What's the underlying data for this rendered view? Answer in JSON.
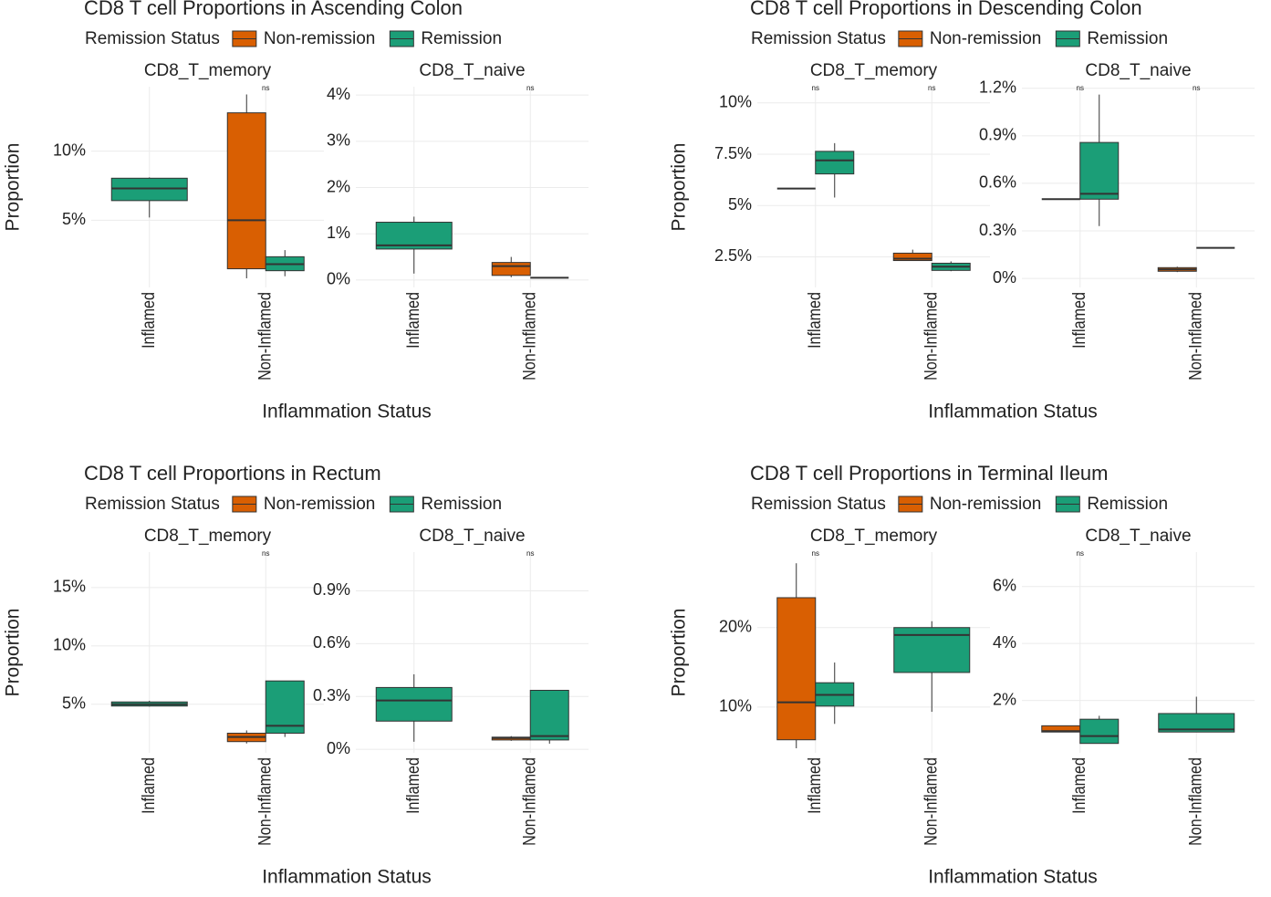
{
  "chart_data": [
    {
      "type": "box",
      "title": "CD8 T cell Proportions in Ascending Colon",
      "legend_title": "Remission Status",
      "series": [
        {
          "name": "Non-remission",
          "color": "#d95f02"
        },
        {
          "name": "Remission",
          "color": "#1b9e77"
        }
      ],
      "x_label": "Inflammation Status",
      "y_label": "Proportion",
      "grid": true,
      "facets": [
        {
          "title": "CD8_T_memory",
          "categories": [
            "Inflamed",
            "Non-Inflamed"
          ],
          "annotations": [
            null,
            "ns"
          ],
          "ylim": [
            0.14,
            14.66
          ],
          "yticks": [
            {
              "value": 5,
              "label": "5%"
            },
            {
              "value": 10,
              "label": "10%"
            }
          ],
          "boxes": [
            [
              null,
              {
                "min": 0.8,
                "q1": 1.49,
                "median": 5.0,
                "q3": 12.77,
                "max": 14.1
              }
            ],
            [
              {
                "min": 5.2,
                "q1": 6.42,
                "median": 7.3,
                "q3": 8.04,
                "max": 8.1
              },
              {
                "min": 0.95,
                "q1": 1.35,
                "median": 1.82,
                "q3": 2.36,
                "max": 2.84
              }
            ]
          ]
        },
        {
          "title": "CD8_T_naive",
          "categories": [
            "Inflamed",
            "Non-Inflamed"
          ],
          "annotations": [
            null,
            "ns"
          ],
          "ylim": [
            -0.16,
            4.18
          ],
          "yticks": [
            {
              "value": 0,
              "label": "0%"
            },
            {
              "value": 1,
              "label": "1%"
            },
            {
              "value": 2,
              "label": "2%"
            },
            {
              "value": 3,
              "label": "3%"
            },
            {
              "value": 4,
              "label": "4%"
            }
          ],
          "boxes": [
            [
              null,
              {
                "min": 0.06,
                "q1": 0.1,
                "median": 0.3,
                "q3": 0.38,
                "max": 0.5
              }
            ],
            [
              {
                "min": 0.14,
                "q1": 0.67,
                "median": 0.75,
                "q3": 1.25,
                "max": 1.37
              },
              {
                "min": 0.05,
                "q1": 0.05,
                "median": 0.05,
                "q3": 0.05,
                "max": 0.05
              }
            ]
          ]
        }
      ]
    },
    {
      "type": "box",
      "title": "CD8 T cell Proportions in Descending Colon",
      "legend_title": "Remission Status",
      "series": [
        {
          "name": "Non-remission",
          "color": "#d95f02"
        },
        {
          "name": "Remission",
          "color": "#1b9e77"
        }
      ],
      "x_label": "Inflammation Status",
      "y_label": "Proportion",
      "grid": true,
      "facets": [
        {
          "title": "CD8_T_memory",
          "categories": [
            "Inflamed",
            "Non-Inflamed"
          ],
          "annotations": [
            "ns",
            "ns"
          ],
          "ylim": [
            1.01,
            10.79
          ],
          "yticks": [
            {
              "value": 2.5,
              "label": "2.5%"
            },
            {
              "value": 5,
              "label": "5%"
            },
            {
              "value": 7.5,
              "label": "7.5%"
            },
            {
              "value": 10,
              "label": "10%"
            }
          ],
          "boxes": [
            [
              {
                "min": 5.83,
                "q1": 5.83,
                "median": 5.83,
                "q3": 5.83,
                "max": 5.83
              },
              {
                "min": 2.32,
                "q1": 2.32,
                "median": 2.41,
                "q3": 2.68,
                "max": 2.85
              }
            ],
            [
              {
                "min": 5.39,
                "q1": 6.54,
                "median": 7.2,
                "q3": 7.64,
                "max": 8.04
              },
              {
                "min": 1.8,
                "q1": 1.84,
                "median": 2.02,
                "q3": 2.19,
                "max": 2.28
              }
            ]
          ]
        },
        {
          "title": "CD8_T_naive",
          "categories": [
            "Inflamed",
            "Non-Inflamed"
          ],
          "annotations": [
            "ns",
            "ns"
          ],
          "ylim": [
            -0.057,
            1.21
          ],
          "yticks": [
            {
              "value": 0,
              "label": "0%"
            },
            {
              "value": 0.3,
              "label": "0.3%"
            },
            {
              "value": 0.6,
              "label": "0.6%"
            },
            {
              "value": 0.9,
              "label": "0.9%"
            },
            {
              "value": 1.2,
              "label": "1.2%"
            }
          ],
          "boxes": [
            [
              {
                "min": 0.5,
                "q1": 0.5,
                "median": 0.5,
                "q3": 0.5,
                "max": 0.5
              },
              {
                "min": 0.04,
                "q1": 0.045,
                "median": 0.057,
                "q3": 0.068,
                "max": 0.074
              }
            ],
            [
              {
                "min": 0.33,
                "q1": 0.5,
                "median": 0.534,
                "q3": 0.858,
                "max": 1.16
              },
              {
                "min": 0.193,
                "q1": 0.193,
                "median": 0.193,
                "q3": 0.193,
                "max": 0.193
              }
            ]
          ]
        }
      ]
    },
    {
      "type": "box",
      "title": "CD8 T cell Proportions in Rectum",
      "legend_title": "Remission Status",
      "series": [
        {
          "name": "Non-remission",
          "color": "#d95f02"
        },
        {
          "name": "Remission",
          "color": "#1b9e77"
        }
      ],
      "x_label": "Inflammation Status",
      "y_label": "Proportion",
      "grid": true,
      "facets": [
        {
          "title": "CD8_T_memory",
          "categories": [
            "Inflamed",
            "Non-Inflamed"
          ],
          "annotations": [
            null,
            "ns"
          ],
          "ylim": [
            0.84,
            18.04
          ],
          "yticks": [
            {
              "value": 5,
              "label": "5%"
            },
            {
              "value": 10,
              "label": "10%"
            },
            {
              "value": 15,
              "label": "15%"
            }
          ],
          "boxes": [
            [
              null,
              {
                "min": 1.64,
                "q1": 1.8,
                "median": 2.2,
                "q3": 2.52,
                "max": 2.76
              }
            ],
            [
              {
                "min": 4.8,
                "q1": 4.85,
                "median": 5.0,
                "q3": 5.2,
                "max": 5.3
              },
              {
                "min": 2.2,
                "q1": 2.52,
                "median": 3.16,
                "q3": 7.0,
                "max": 7.0
              }
            ]
          ]
        },
        {
          "title": "CD8_T_naive",
          "categories": [
            "Inflamed",
            "Non-Inflamed"
          ],
          "annotations": [
            null,
            "ns"
          ],
          "ylim": [
            -0.02,
            1.12
          ],
          "yticks": [
            {
              "value": 0,
              "label": "0%"
            },
            {
              "value": 0.3,
              "label": "0.3%"
            },
            {
              "value": 0.6,
              "label": "0.6%"
            },
            {
              "value": 0.9,
              "label": "0.9%"
            }
          ],
          "boxes": [
            [
              null,
              {
                "min": 0.048,
                "q1": 0.053,
                "median": 0.064,
                "q3": 0.069,
                "max": 0.075
              }
            ],
            [
              {
                "min": 0.043,
                "q1": 0.16,
                "median": 0.277,
                "q3": 0.351,
                "max": 0.426
              },
              {
                "min": 0.032,
                "q1": 0.053,
                "median": 0.075,
                "q3": 0.335,
                "max": 0.335
              }
            ]
          ]
        }
      ]
    },
    {
      "type": "box",
      "title": "CD8 T cell Proportions in Terminal Ileum",
      "legend_title": "Remission Status",
      "series": [
        {
          "name": "Non-remission",
          "color": "#d95f02"
        },
        {
          "name": "Remission",
          "color": "#1b9e77"
        }
      ],
      "x_label": "Inflammation Status",
      "y_label": "Proportion",
      "grid": true,
      "facets": [
        {
          "title": "CD8_T_memory",
          "categories": [
            "Inflamed",
            "Non-Inflamed"
          ],
          "annotations": [
            "ns",
            null
          ],
          "ylim": [
            4.24,
            29.5
          ],
          "yticks": [
            {
              "value": 10,
              "label": "10%"
            },
            {
              "value": 20,
              "label": "20%"
            }
          ],
          "boxes": [
            [
              {
                "min": 4.82,
                "q1": 5.88,
                "median": 10.6,
                "q3": 23.76,
                "max": 28.1
              },
              null
            ],
            [
              {
                "min": 7.88,
                "q1": 10.12,
                "median": 11.53,
                "q3": 13.06,
                "max": 15.6
              },
              {
                "min": 9.4,
                "q1": 14.35,
                "median": 19.06,
                "q3": 20.0,
                "max": 20.8
              }
            ]
          ]
        },
        {
          "title": "CD8_T_naive",
          "categories": [
            "Inflamed",
            "Non-Inflamed"
          ],
          "annotations": [
            "ns",
            null
          ],
          "ylim": [
            0.16,
            7.21
          ],
          "yticks": [
            {
              "value": 2,
              "label": "2%"
            },
            {
              "value": 4,
              "label": "4%"
            },
            {
              "value": 6,
              "label": "6%"
            }
          ],
          "boxes": [
            [
              {
                "min": 0.89,
                "q1": 0.89,
                "median": 0.92,
                "q3": 1.11,
                "max": 1.11
              },
              null
            ],
            [
              {
                "min": 0.49,
                "q1": 0.49,
                "median": 0.75,
                "q3": 1.34,
                "max": 1.46
              },
              {
                "min": 0.89,
                "q1": 0.89,
                "median": 0.98,
                "q3": 1.54,
                "max": 2.13
              }
            ]
          ]
        }
      ]
    }
  ]
}
